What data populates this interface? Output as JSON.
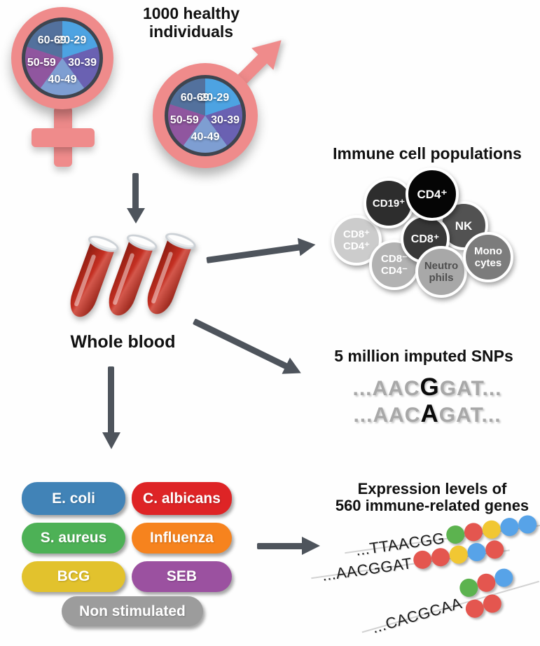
{
  "header": {
    "title": "1000 healthy\nindividuals"
  },
  "demographics": {
    "age_groups": [
      "20-29",
      "30-39",
      "40-49",
      "50-59",
      "60-69"
    ],
    "age_group_colors": [
      "#4da3e2",
      "#6a61b2",
      "#7e9ed2",
      "#90569f",
      "#53719d"
    ],
    "symbol_color": "#ef8b8b"
  },
  "whole_blood": {
    "label": "Whole blood",
    "tube_count": 3,
    "blood_color": "#b02318"
  },
  "immune_cells": {
    "title": "Immune cell populations",
    "cells": [
      {
        "label": "CD19⁺",
        "color": "#2d2d2d",
        "text_color": "#ffffff"
      },
      {
        "label": "CD4⁺",
        "color": "#050505",
        "text_color": "#ffffff"
      },
      {
        "label": "NK",
        "color": "#525252",
        "text_color": "#ffffff"
      },
      {
        "label": "CD8⁺",
        "color": "#383838",
        "text_color": "#ffffff"
      },
      {
        "label": "CD8⁺\nCD4⁺",
        "color": "#cccccc",
        "text_color": "#ffffff"
      },
      {
        "label": "CD8⁻\nCD4⁻",
        "color": "#b2b2b2",
        "text_color": "#ffffff"
      },
      {
        "label": "Neutro\nphils",
        "color": "#a8a8a8",
        "text_color": "#4f4f4f"
      },
      {
        "label": "Mono\ncytes",
        "color": "#7c7c7c",
        "text_color": "#ffffff"
      }
    ]
  },
  "snps": {
    "title": "5 million imputed SNPs",
    "sequences": [
      {
        "prefix": "...AAC",
        "variant": "G",
        "suffix": "GAT..."
      },
      {
        "prefix": "...AAC",
        "variant": "A",
        "suffix": "GAT..."
      }
    ]
  },
  "stimuli": {
    "items": [
      {
        "label": "E. coli",
        "color": "#4183b7"
      },
      {
        "label": "C. albicans",
        "color": "#de2426"
      },
      {
        "label": "S. aureus",
        "color": "#4db156"
      },
      {
        "label": "Influenza",
        "color": "#f6831e"
      },
      {
        "label": "BCG",
        "color": "#e2c22d"
      },
      {
        "label": "SEB",
        "color": "#9b51a0"
      },
      {
        "label": "Non stimulated",
        "color": "#9c9c9c"
      }
    ]
  },
  "expression": {
    "title": "Expression levels of\n560 immune-related genes",
    "rows": [
      {
        "sequence": "...TTAACGG",
        "dots": [
          "green",
          "red",
          "yellow",
          "blue",
          "blue"
        ]
      },
      {
        "sequence": "...AACGGAT",
        "dots": [
          "red",
          "red",
          "yellow",
          "blue",
          "red"
        ]
      },
      {
        "sequence": "...CACGCAA",
        "dots": [
          "green",
          "red",
          "blue",
          "red",
          "red"
        ]
      }
    ],
    "dot_colors": {
      "green": "#5cb34f",
      "red": "#e4564f",
      "yellow": "#f1c733",
      "blue": "#57a3e8"
    }
  },
  "arrow_color": "#4e545c"
}
